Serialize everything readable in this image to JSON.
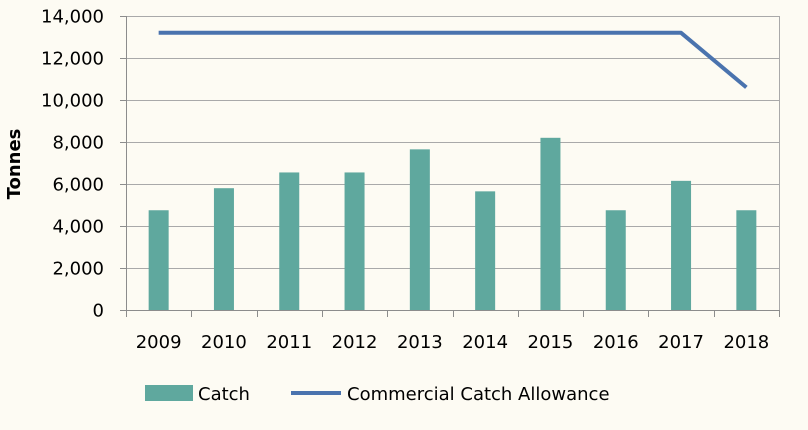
{
  "chart_data": {
    "type": "bar",
    "categories": [
      "2009",
      "2010",
      "2011",
      "2012",
      "2013",
      "2014",
      "2015",
      "2016",
      "2017",
      "2018"
    ],
    "series": [
      {
        "name": "Catch",
        "type": "bar",
        "color": "#5FA89E",
        "values": [
          4750,
          5800,
          6550,
          6550,
          7650,
          5650,
          8200,
          4750,
          6150,
          4750
        ]
      },
      {
        "name": "Commercial Catch Allowance",
        "type": "line",
        "color": "#4A73AE",
        "values": [
          13200,
          13200,
          13200,
          13200,
          13200,
          13200,
          13200,
          13200,
          13200,
          10600
        ]
      }
    ],
    "title": "",
    "xlabel": "",
    "ylabel": "Tonnes",
    "ylim": [
      0,
      14000
    ],
    "yticks": [
      0,
      2000,
      4000,
      6000,
      8000,
      10000,
      12000,
      14000
    ],
    "ytick_labels": [
      "0",
      "2,000",
      "4,000",
      "6,000",
      "8,000",
      "10,000",
      "12,000",
      "14,000"
    ],
    "grid": true,
    "legend_position": "bottom-left",
    "legend": [
      {
        "label": "Catch",
        "marker": "bar",
        "color": "#5FA89E"
      },
      {
        "label": "Commercial Catch Allowance",
        "marker": "line",
        "color": "#4A73AE"
      }
    ]
  }
}
